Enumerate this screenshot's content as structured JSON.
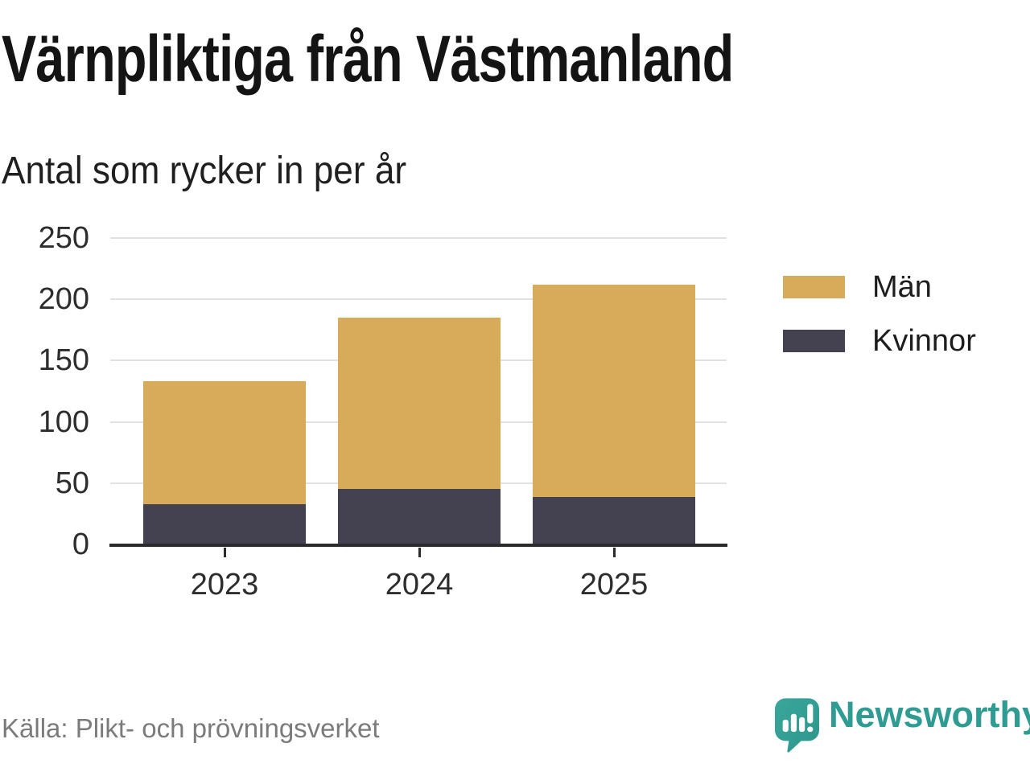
{
  "title": "Värnpliktiga från Västmanland",
  "subtitle": "Antal som rycker in per år",
  "source": "Källa: Plikt- och prövningsverket",
  "brand": {
    "name": "Newsworthy",
    "icon": "newsworthy-speech-bubble-bar-chart-icon",
    "color": "#2f9c93"
  },
  "colors": {
    "men_bar": "#d8ab5a",
    "women_bar": "#444250",
    "gridline": "#e1e1e1",
    "axis": "#2b2b2b",
    "tick_text": "#2d2d2d",
    "source_text": "#7b7b7b"
  },
  "chart_data": {
    "type": "bar",
    "stacked": true,
    "title": "Värnpliktiga från Västmanland",
    "subtitle": "Antal som rycker in per år",
    "categories": [
      "2023",
      "2024",
      "2025"
    ],
    "series": [
      {
        "name": "Män",
        "color": "#d8ab5a",
        "values": [
          100,
          140,
          173
        ]
      },
      {
        "name": "Kvinnor",
        "color": "#444250",
        "values": [
          33,
          45,
          39
        ]
      }
    ],
    "totals": [
      133,
      185,
      212
    ],
    "xlabel": "",
    "ylabel": "",
    "ylim": [
      0,
      250
    ],
    "yticks": [
      0,
      50,
      100,
      150,
      200,
      250
    ],
    "grid": true,
    "legend_position": "right"
  }
}
